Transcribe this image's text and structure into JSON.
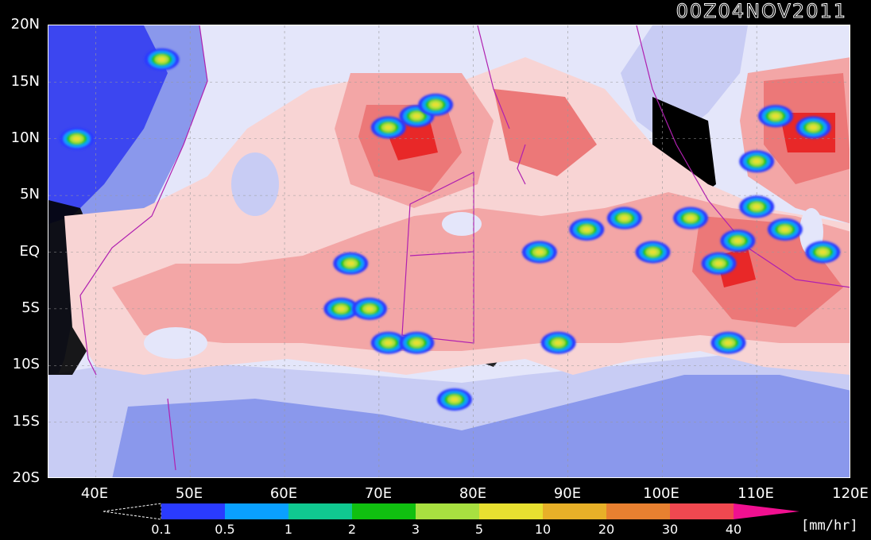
{
  "title": "00Z04NOV2011",
  "units": "[mm/hr]",
  "lat_labels": [
    "20N",
    "15N",
    "10N",
    "5N",
    "EQ",
    "5S",
    "10S",
    "15S",
    "20S"
  ],
  "lon_labels": [
    "40E",
    "50E",
    "60E",
    "70E",
    "80E",
    "90E",
    "100E",
    "110E",
    "120E"
  ],
  "extent": {
    "lon": [
      35,
      120
    ],
    "lat": [
      -20,
      20
    ]
  },
  "colorbar": {
    "ticks": [
      "0.1",
      "0.5",
      "1",
      "2",
      "3",
      "5",
      "10",
      "20",
      "30",
      "40"
    ],
    "colors": [
      "#2a3bff",
      "#0aa0ff",
      "#10c890",
      "#10c010",
      "#a8e040",
      "#e8e030",
      "#e8b028",
      "#e88030",
      "#f04850",
      "#f01090"
    ]
  },
  "rain_colors": {
    "very_light": "#e4e6fa",
    "light_blue": "#c8ccf4",
    "mid_blue": "#8a98ec",
    "deep_blue": "#3c46f0",
    "dry_black": "#000000",
    "light_pink": "#f8d4d4",
    "pink": "#f3a6a6",
    "salmon": "#ec7878",
    "red": "#e82828"
  },
  "convective_clusters": [
    {
      "lon": 71,
      "lat": 11
    },
    {
      "lon": 74,
      "lat": 12
    },
    {
      "lon": 76,
      "lat": 13
    },
    {
      "lon": 47,
      "lat": 17
    },
    {
      "lon": 67,
      "lat": -1
    },
    {
      "lon": 66,
      "lat": -5
    },
    {
      "lon": 69,
      "lat": -5
    },
    {
      "lon": 71,
      "lat": -8
    },
    {
      "lon": 74,
      "lat": -8
    },
    {
      "lon": 87,
      "lat": 0
    },
    {
      "lon": 92,
      "lat": 2
    },
    {
      "lon": 96,
      "lat": 3
    },
    {
      "lon": 99,
      "lat": 0
    },
    {
      "lon": 103,
      "lat": 3
    },
    {
      "lon": 106,
      "lat": -1
    },
    {
      "lon": 108,
      "lat": 1
    },
    {
      "lon": 110,
      "lat": 4
    },
    {
      "lon": 113,
      "lat": 2
    },
    {
      "lon": 117,
      "lat": 0
    },
    {
      "lon": 112,
      "lat": 12
    },
    {
      "lon": 116,
      "lat": 11
    },
    {
      "lon": 110,
      "lat": 8
    },
    {
      "lon": 89,
      "lat": -8
    },
    {
      "lon": 107,
      "lat": -8
    },
    {
      "lon": 78,
      "lat": -13
    },
    {
      "lon": 38,
      "lat": 10
    }
  ]
}
